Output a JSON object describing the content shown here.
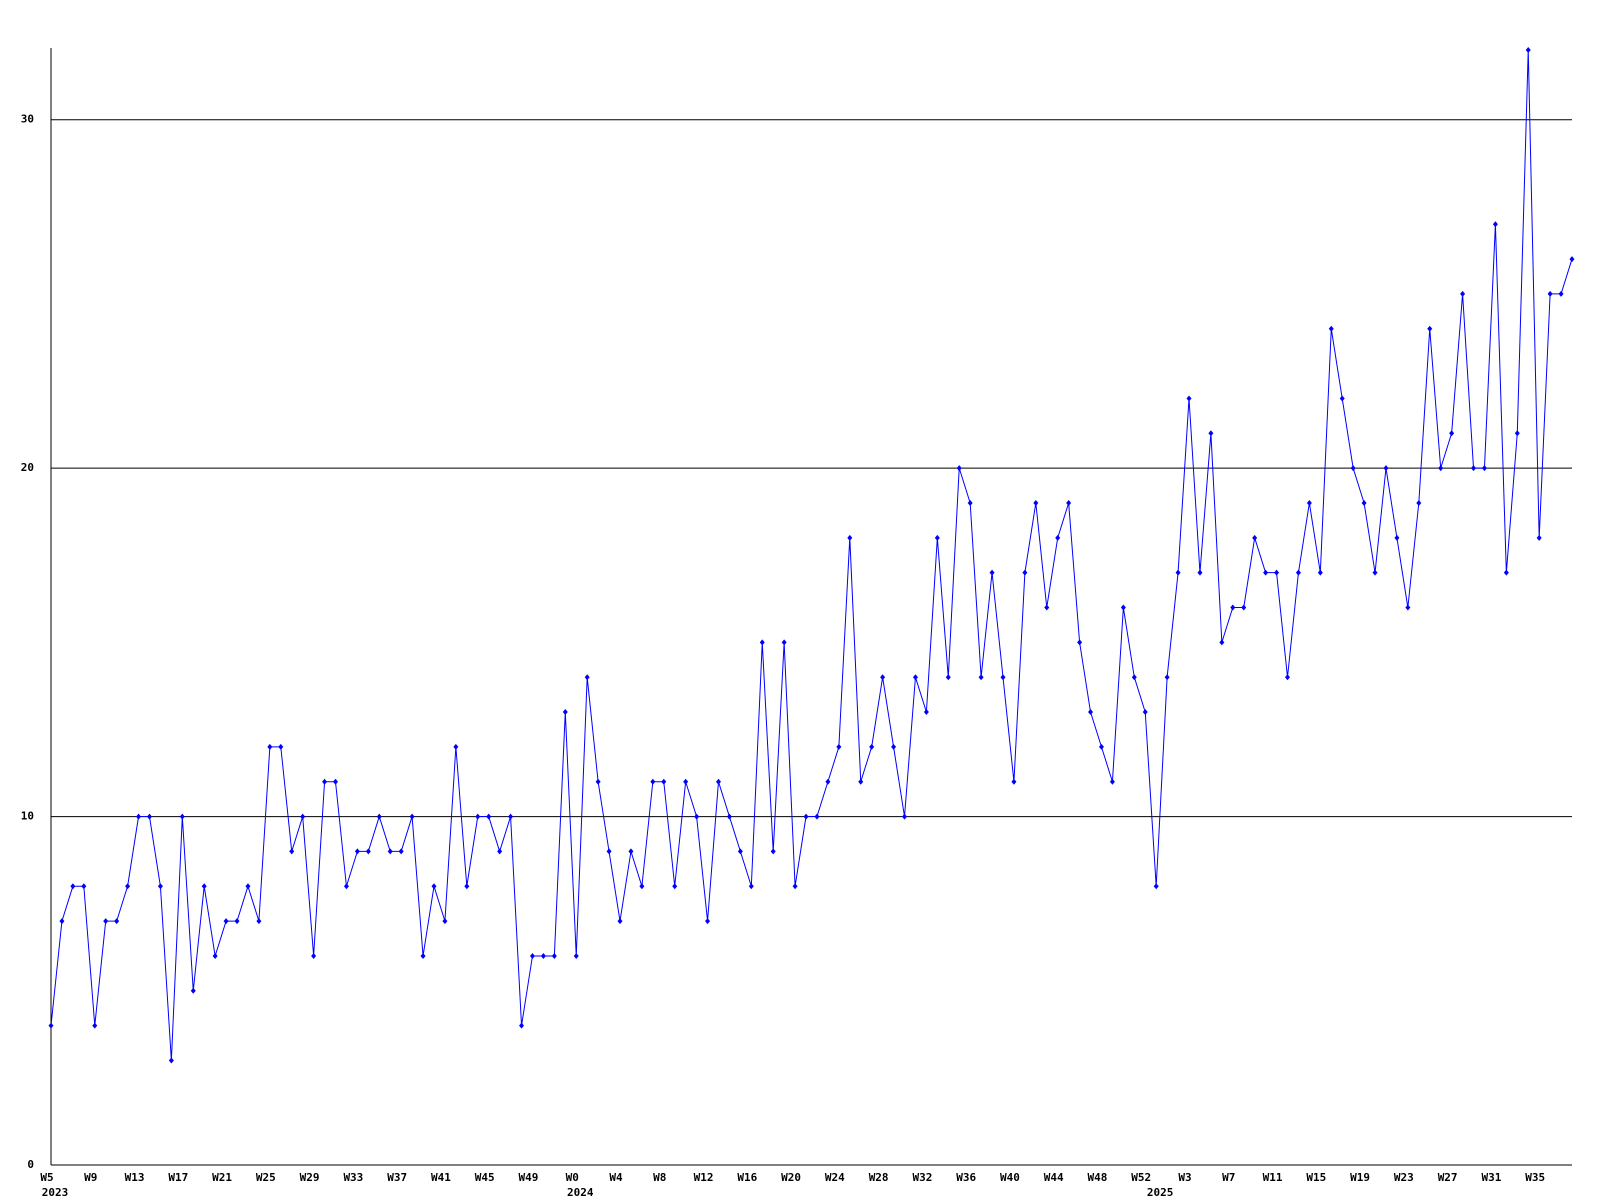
{
  "chart_data": {
    "type": "line",
    "categories": [
      "W5",
      null,
      null,
      null,
      "W9",
      null,
      null,
      null,
      "W13",
      null,
      null,
      null,
      "W17",
      null,
      null,
      null,
      "W21",
      null,
      null,
      null,
      "W25",
      null,
      null,
      null,
      "W29",
      null,
      null,
      null,
      "W33",
      null,
      null,
      null,
      "W37",
      null,
      null,
      null,
      "W41",
      null,
      null,
      null,
      "W45",
      null,
      null,
      null,
      "W49",
      null,
      null,
      null,
      "W0",
      null,
      null,
      null,
      "W4",
      null,
      null,
      null,
      "W8",
      null,
      null,
      null,
      "W12",
      null,
      null,
      null,
      "W16",
      null,
      null,
      null,
      "W20",
      null,
      null,
      null,
      "W24",
      null,
      null,
      null,
      "W28",
      null,
      null,
      null,
      "W32",
      null,
      null,
      null,
      "W36",
      null,
      null,
      null,
      "W40",
      null,
      null,
      null,
      "W44",
      null,
      null,
      null,
      "W48",
      null,
      null,
      null,
      "W52",
      null,
      null,
      null,
      "W3",
      null,
      null,
      null,
      "W7",
      null,
      null,
      null,
      "W11",
      null,
      null,
      null,
      "W15",
      null,
      null,
      null,
      "W19",
      null,
      null,
      null,
      "W23",
      null,
      null,
      null,
      "W27",
      null,
      null,
      null,
      "W31",
      null,
      null,
      null,
      "W35",
      null,
      null,
      null
    ],
    "years": [
      "2023",
      null,
      null,
      null,
      null,
      null,
      null,
      null,
      null,
      null,
      null,
      null,
      null,
      null,
      null,
      null,
      null,
      null,
      null,
      null,
      null,
      null,
      null,
      null,
      null,
      null,
      null,
      null,
      null,
      null,
      null,
      null,
      null,
      null,
      null,
      null,
      null,
      null,
      null,
      null,
      null,
      null,
      null,
      null,
      null,
      null,
      null,
      null,
      "2024",
      null,
      null,
      null,
      null,
      null,
      null,
      null,
      null,
      null,
      null,
      null,
      null,
      null,
      null,
      null,
      null,
      null,
      null,
      null,
      null,
      null,
      null,
      null,
      null,
      null,
      null,
      null,
      null,
      null,
      null,
      null,
      null,
      null,
      null,
      null,
      null,
      null,
      null,
      null,
      null,
      null,
      null,
      null,
      null,
      null,
      null,
      null,
      null,
      null,
      null,
      null,
      null,
      "2025",
      null,
      null,
      null,
      null,
      null,
      null,
      null,
      null,
      null,
      null,
      null,
      null,
      null,
      null,
      null,
      null,
      null,
      null,
      null,
      null,
      null,
      null,
      null,
      null,
      null,
      null,
      null,
      null,
      null,
      null,
      null,
      null,
      null,
      null,
      null,
      null,
      null,
      null
    ],
    "values": [
      4,
      7,
      8,
      8,
      4,
      7,
      7,
      8,
      10,
      10,
      8,
      3,
      10,
      5,
      8,
      6,
      7,
      7,
      8,
      7,
      12,
      12,
      9,
      10,
      6,
      11,
      11,
      8,
      9,
      9,
      10,
      9,
      9,
      10,
      6,
      8,
      7,
      12,
      8,
      10,
      10,
      9,
      10,
      4,
      6,
      6,
      6,
      13,
      6,
      14,
      11,
      9,
      7,
      9,
      8,
      11,
      11,
      8,
      11,
      10,
      7,
      11,
      10,
      9,
      8,
      15,
      9,
      15,
      8,
      10,
      10,
      11,
      12,
      18,
      11,
      12,
      14,
      12,
      10,
      14,
      13,
      18,
      14,
      20,
      19,
      14,
      17,
      14,
      11,
      17,
      19,
      16,
      18,
      19,
      15,
      13,
      12,
      11,
      16,
      14,
      13,
      8,
      14,
      17,
      22,
      17,
      21,
      15,
      16,
      16,
      18,
      17,
      17,
      14,
      17,
      19,
      17,
      24,
      22,
      20,
      19,
      17,
      20,
      18,
      16,
      19,
      24,
      20,
      21,
      25,
      20,
      20,
      27,
      17,
      21,
      32,
      18,
      25,
      25,
      26
    ],
    "color": "#0000ff",
    "ylim": [
      0,
      32
    ],
    "yticks": [
      0,
      10,
      20,
      30
    ],
    "grid": true
  }
}
